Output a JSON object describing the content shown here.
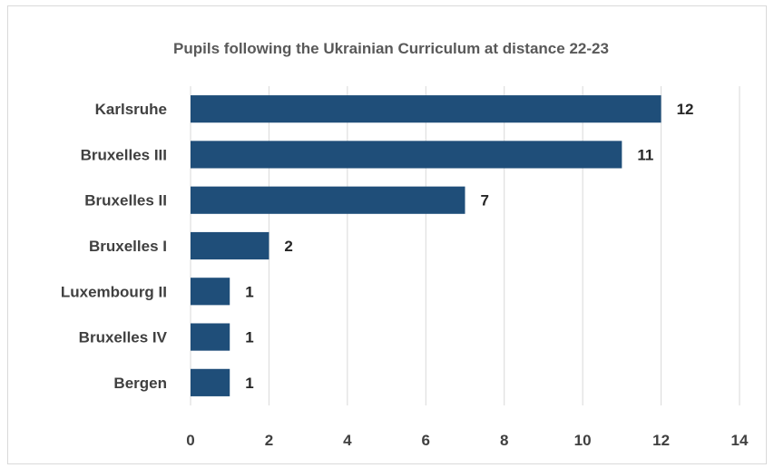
{
  "chart_data": {
    "type": "bar",
    "orientation": "horizontal",
    "title": "Pupils following the Ukrainian Curriculum at distance  22-23",
    "xlabel": "",
    "ylabel": "",
    "categories": [
      "Karlsruhe",
      "Bruxelles III",
      "Bruxelles II",
      "Bruxelles I",
      "Luxembourg II",
      "Bruxelles IV",
      "Bergen"
    ],
    "values": [
      12,
      11,
      7,
      2,
      1,
      1,
      1
    ],
    "xlim": [
      0,
      14
    ],
    "xticks": [
      0,
      2,
      4,
      6,
      8,
      10,
      12,
      14
    ],
    "grid": "vertical",
    "legend": "none",
    "bar_color": "#1f4e79",
    "data_labels": true
  }
}
